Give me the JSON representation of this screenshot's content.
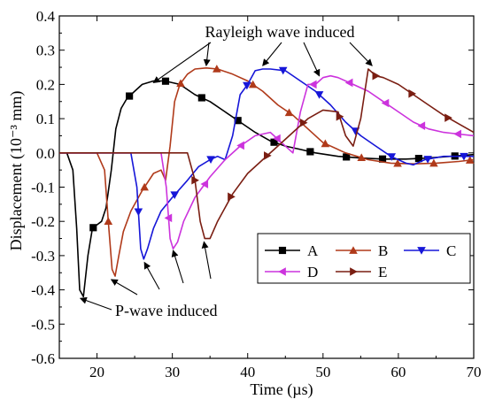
{
  "chart_data": {
    "type": "line",
    "title": "",
    "xlabel": "Time (µs)",
    "ylabel": "Displacement (10⁻³ mm)",
    "xlim": [
      15,
      70
    ],
    "ylim": [
      -0.6,
      0.4
    ],
    "xticks": [
      20,
      30,
      40,
      50,
      60,
      70
    ],
    "yticks": [
      -0.6,
      -0.5,
      -0.4,
      -0.3,
      -0.2,
      -0.1,
      0.0,
      0.1,
      0.2,
      0.3,
      0.4
    ],
    "xtick_labels": [
      "20",
      "30",
      "40",
      "50",
      "60",
      "70"
    ],
    "ytick_labels": [
      "-0.6",
      "-0.5",
      "-0.4",
      "-0.3",
      "-0.2",
      "-0.1",
      "0.0",
      "0.1",
      "0.2",
      "0.3",
      "0.4"
    ],
    "grid": false,
    "legend_position": "bottom-right",
    "series": [
      {
        "name": "A",
        "color": "#000000",
        "marker": "square",
        "x": [
          15,
          16,
          16.8,
          17.3,
          17.7,
          18.2,
          18.8,
          19.4,
          20,
          20.6,
          21.2,
          21.9,
          22.5,
          23.2,
          24,
          25,
          26,
          27.5,
          29,
          31,
          33,
          35,
          37,
          39,
          41,
          43,
          45,
          47,
          49,
          52,
          55,
          58,
          61,
          64,
          67,
          70
        ],
        "y": [
          0,
          0,
          -0.05,
          -0.22,
          -0.4,
          -0.42,
          -0.3,
          -0.22,
          -0.21,
          -0.2,
          -0.16,
          -0.05,
          0.07,
          0.13,
          0.16,
          0.18,
          0.2,
          0.21,
          0.21,
          0.2,
          0.17,
          0.15,
          0.12,
          0.09,
          0.06,
          0.035,
          0.02,
          0.01,
          0.0,
          -0.01,
          -0.015,
          -0.018,
          -0.018,
          -0.015,
          -0.01,
          -0.005
        ]
      },
      {
        "name": "B",
        "color": "#b03a1a",
        "marker": "triangle-up",
        "x": [
          15,
          20,
          21,
          21.5,
          22,
          22.4,
          22.9,
          23.5,
          24.5,
          26,
          27.5,
          28.5,
          29.1,
          29.7,
          30.3,
          31,
          32,
          33,
          34.5,
          36,
          38,
          40,
          42,
          44,
          46,
          48,
          50,
          53,
          56,
          59,
          62,
          65,
          68,
          70
        ],
        "y": [
          0,
          0,
          -0.05,
          -0.2,
          -0.34,
          -0.36,
          -0.3,
          -0.23,
          -0.17,
          -0.11,
          -0.06,
          -0.05,
          -0.08,
          0.02,
          0.15,
          0.2,
          0.23,
          0.245,
          0.248,
          0.245,
          0.23,
          0.21,
          0.18,
          0.14,
          0.11,
          0.07,
          0.03,
          0.0,
          -0.02,
          -0.03,
          -0.032,
          -0.03,
          -0.025,
          -0.02
        ]
      },
      {
        "name": "C",
        "color": "#1616d8",
        "marker": "triangle-down",
        "x": [
          15,
          24.5,
          25.3,
          25.8,
          26.2,
          26.7,
          27.5,
          28.5,
          30,
          32,
          33.5,
          35,
          36,
          37,
          38,
          39,
          40,
          41,
          42,
          43,
          45,
          47,
          49,
          51,
          53,
          55,
          57,
          59,
          61,
          62,
          63.5,
          66,
          70
        ],
        "y": [
          0,
          0,
          -0.1,
          -0.28,
          -0.31,
          -0.28,
          -0.22,
          -0.17,
          -0.13,
          -0.08,
          -0.04,
          -0.02,
          -0.01,
          -0.02,
          0.05,
          0.17,
          0.2,
          0.24,
          0.245,
          0.245,
          0.24,
          0.21,
          0.18,
          0.14,
          0.09,
          0.05,
          0.02,
          -0.01,
          -0.03,
          -0.035,
          -0.02,
          -0.01,
          -0.01
        ]
      },
      {
        "name": "D",
        "color": "#cc33dd",
        "marker": "triangle-left",
        "x": [
          15,
          28.5,
          29.2,
          29.7,
          30.1,
          30.7,
          31.5,
          33,
          35,
          37,
          39,
          41,
          43,
          44.5,
          46,
          47,
          48,
          49,
          50,
          51,
          52,
          54,
          56,
          58,
          60,
          62,
          64,
          66,
          68,
          70
        ],
        "y": [
          0,
          0,
          -0.1,
          -0.25,
          -0.28,
          -0.26,
          -0.2,
          -0.13,
          -0.07,
          -0.02,
          0.02,
          0.05,
          0.06,
          0.03,
          0.0,
          0.12,
          0.2,
          0.2,
          0.22,
          0.225,
          0.22,
          0.2,
          0.18,
          0.15,
          0.12,
          0.09,
          0.07,
          0.06,
          0.055,
          0.05
        ]
      },
      {
        "name": "E",
        "color": "#7a1e12",
        "marker": "triangle-right",
        "x": [
          15,
          32,
          33,
          33.7,
          34.3,
          35,
          36,
          38,
          40,
          42,
          44,
          46,
          48,
          50,
          52,
          53,
          54,
          55,
          56,
          57,
          58,
          60,
          62,
          64,
          66,
          68,
          70
        ],
        "y": [
          0,
          0,
          -0.08,
          -0.2,
          -0.25,
          -0.25,
          -0.2,
          -0.12,
          -0.06,
          -0.02,
          0.02,
          0.06,
          0.1,
          0.125,
          0.12,
          0.05,
          0.02,
          0.1,
          0.245,
          0.225,
          0.22,
          0.2,
          0.17,
          0.14,
          0.11,
          0.085,
          0.06
        ]
      }
    ],
    "annotations": [
      {
        "text": "Rayleigh wave induced",
        "kind": "label-top"
      },
      {
        "text": "P-wave induced",
        "kind": "label-bottom"
      }
    ]
  }
}
